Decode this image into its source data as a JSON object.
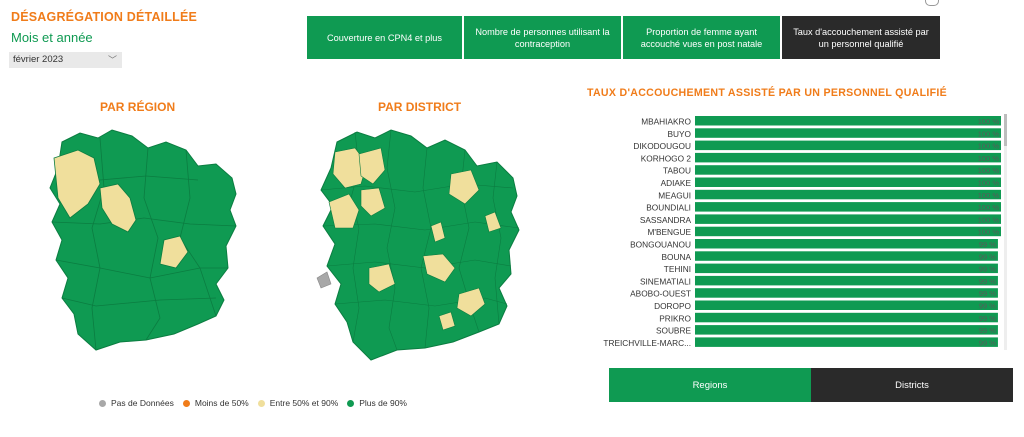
{
  "header": {
    "title": "DÉSAGRÉGATION DÉTAILLÉE",
    "subtitle": "Mois et année",
    "month_value": "février 2023"
  },
  "tabs": [
    {
      "label": "Couverture en CPN4 et plus",
      "active": false
    },
    {
      "label": "Nombre de personnes utilisant la contraception",
      "active": false
    },
    {
      "label": "Proportion de femme ayant accouché vues en post natale",
      "active": false
    },
    {
      "label": "Taux d'accouchement assisté par un personnel qualifié",
      "active": true
    }
  ],
  "maps": {
    "region_title": "PAR RÉGION",
    "district_title": "PAR DISTRICT"
  },
  "legend": [
    {
      "label": "Pas de Données",
      "color": "#a8a8a8"
    },
    {
      "label": "Moins de 50%",
      "color": "#f07c1a"
    },
    {
      "label": "Entre 50% et 90%",
      "color": "#f0df9c"
    },
    {
      "label": "Plus de 90%",
      "color": "#0f9a52"
    }
  ],
  "chart_data": {
    "type": "bar",
    "orientation": "horizontal",
    "title": "TAUX D'ACCOUCHEMENT ASSISTÉ PAR UN PERSONNEL QUALIFIÉ",
    "categories": [
      "MBAHIAKRO",
      "BUYO",
      "DIKODOUGOU",
      "KORHOGO 2",
      "TABOU",
      "ADIAKE",
      "MEAGUI",
      "BOUNDIALI",
      "SASSANDRA",
      "M'BENGUE",
      "BONGOUANOU",
      "BOUNA",
      "TEHINI",
      "SINEMATIALI",
      "ABOBO-OUEST",
      "DOROPO",
      "PRIKRO",
      "SOUBRE",
      "TREICHVILLE-MARC..."
    ],
    "values": [
      100,
      100,
      100,
      100,
      100,
      100,
      100,
      100,
      100,
      100,
      99,
      99,
      99,
      99,
      99,
      99,
      99,
      99,
      99
    ],
    "value_unit": "%",
    "bar_color": "#0f9a52",
    "xlim": [
      0,
      100
    ]
  },
  "bottom_tabs": [
    {
      "label": "Regions",
      "style": "green"
    },
    {
      "label": "Districts",
      "style": "dark"
    }
  ]
}
